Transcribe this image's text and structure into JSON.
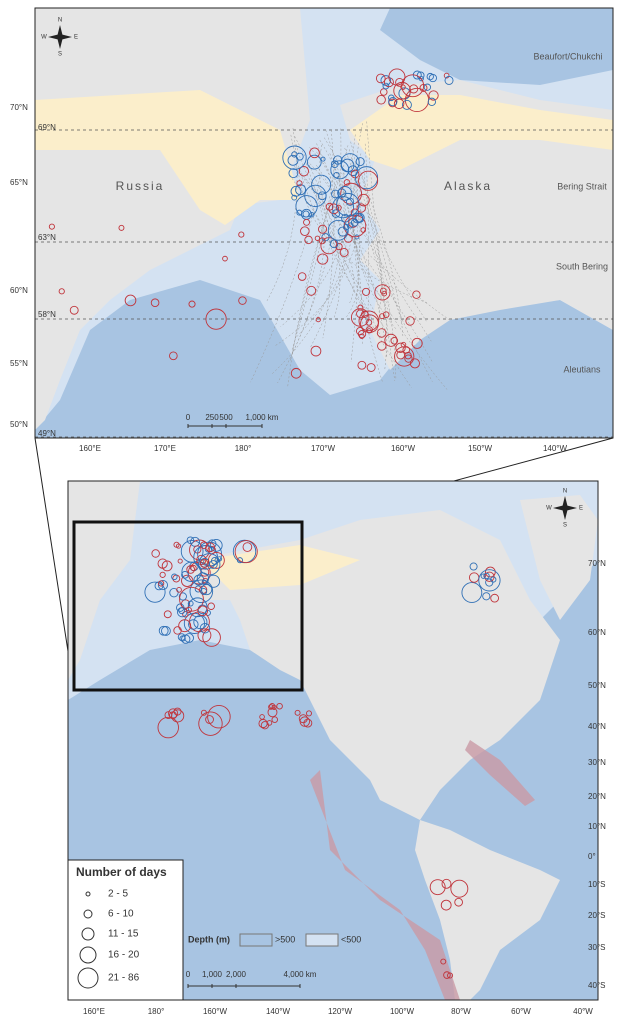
{
  "top_map": {
    "regions": [
      "Beaufort/Chukchi",
      "Russia",
      "Alaska",
      "Bering Strait",
      "South Bering",
      "Aleutians"
    ],
    "lat_labels": [
      "70°N",
      "65°N",
      "60°N",
      "55°N",
      "50°N"
    ],
    "line_labels": [
      "69°N",
      "63°N",
      "58°N",
      "49°N"
    ],
    "lon_labels": [
      "160°E",
      "170°E",
      "180°",
      "170°W",
      "160°W",
      "150°W",
      "140°W"
    ],
    "scale": [
      "0",
      "250",
      "500",
      "1,000 km"
    ],
    "compass": [
      "N",
      "S",
      "E",
      "W"
    ]
  },
  "overview_map": {
    "lat_labels": [
      "70°N",
      "60°N",
      "50°N",
      "40°N",
      "30°N",
      "20°N",
      "10°N",
      "0°",
      "10°S",
      "20°S",
      "30°S",
      "40°S"
    ],
    "lon_labels": [
      "160°E",
      "180°",
      "160°W",
      "140°W",
      "120°W",
      "100°W",
      "80°W",
      "60°W",
      "40°W"
    ],
    "scale": [
      "0",
      "1,000",
      "2,000",
      "4,000 km"
    ],
    "compass": [
      "N",
      "S",
      "E",
      "W"
    ]
  },
  "legend": {
    "title": "Number of days",
    "items": [
      "2 - 5",
      "6 - 10",
      "11 - 15",
      "16 - 20",
      "21 - 86"
    ]
  },
  "depth_legend": {
    "title": "Depth (m)",
    "items": [
      ">500",
      "<500"
    ]
  }
}
